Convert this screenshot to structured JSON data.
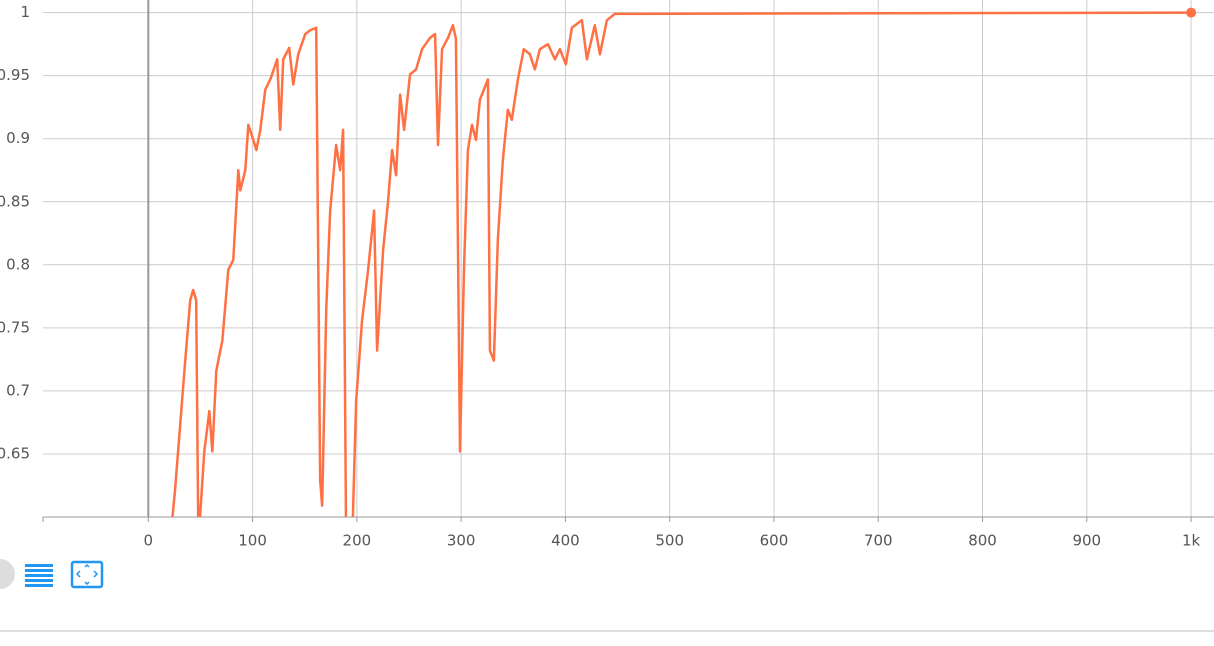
{
  "chart_data": {
    "type": "line",
    "xlim": [
      -101,
      1022
    ],
    "ylim": [
      0.6,
      1.01
    ],
    "xticks": [
      0,
      100,
      200,
      300,
      400,
      500,
      600,
      700,
      800,
      900,
      {
        "value": 1000,
        "label": "1k"
      }
    ],
    "yticks": [
      0.65,
      0.7,
      0.75,
      0.8,
      0.85,
      0.9,
      0.95,
      1
    ],
    "grid": true,
    "series": [
      {
        "color": "#ff7043",
        "x": [
          22,
          25.6,
          31.6,
          35.4,
          40.2,
          43,
          45.9,
          48,
          53.7,
          58.5,
          61.4,
          65.2,
          71,
          76.7,
          81.5,
          86.3,
          88.2,
          93,
          95.9,
          100.7,
          103.6,
          107.4,
          112.2,
          117,
          123.6,
          126.5,
          129.4,
          135.1,
          139,
          143.8,
          150.5,
          155.3,
          161,
          164.8,
          166.7,
          170.6,
          174.4,
          180.1,
          184,
          186.8,
          189.7,
          195.5,
          199.3,
          205,
          210.8,
          216.5,
          219.4,
          225.2,
          230,
          233.8,
          237.6,
          241.5,
          245.3,
          251,
          256.8,
          262.5,
          270.2,
          275,
          277.8,
          281.7,
          287.4,
          292.2,
          295,
          298.9,
          302.7,
          306.5,
          310.4,
          314.2,
          318,
          325.7,
          327.6,
          331.4,
          335.2,
          340,
          344.8,
          348.6,
          354.4,
          360.1,
          365.9,
          370.7,
          375.5,
          383.2,
          389.9,
          394.7,
          400.4,
          406.2,
          415.8,
          420.6,
          428.2,
          433.1,
          439.8,
          447.4,
          1000
        ],
        "values": [
          0.59,
          0.621,
          0.684,
          0.724,
          0.772,
          0.78,
          0.772,
          0.58,
          0.652,
          0.684,
          0.652,
          0.716,
          0.74,
          0.796,
          0.804,
          0.875,
          0.859,
          0.875,
          0.911,
          0.899,
          0.891,
          0.907,
          0.939,
          0.947,
          0.963,
          0.907,
          0.963,
          0.972,
          0.943,
          0.967,
          0.983,
          0.986,
          0.988,
          0.629,
          0.609,
          0.764,
          0.843,
          0.895,
          0.875,
          0.907,
          0.58,
          0.58,
          0.692,
          0.756,
          0.796,
          0.843,
          0.732,
          0.812,
          0.851,
          0.891,
          0.871,
          0.935,
          0.907,
          0.951,
          0.955,
          0.971,
          0.98,
          0.983,
          0.895,
          0.971,
          0.98,
          0.99,
          0.979,
          0.652,
          0.796,
          0.891,
          0.911,
          0.899,
          0.931,
          0.947,
          0.732,
          0.724,
          0.82,
          0.883,
          0.923,
          0.915,
          0.947,
          0.971,
          0.967,
          0.955,
          0.971,
          0.975,
          0.963,
          0.971,
          0.959,
          0.988,
          0.994,
          0.963,
          0.99,
          0.967,
          0.994,
          0.999,
          1
        ]
      }
    ]
  }
}
